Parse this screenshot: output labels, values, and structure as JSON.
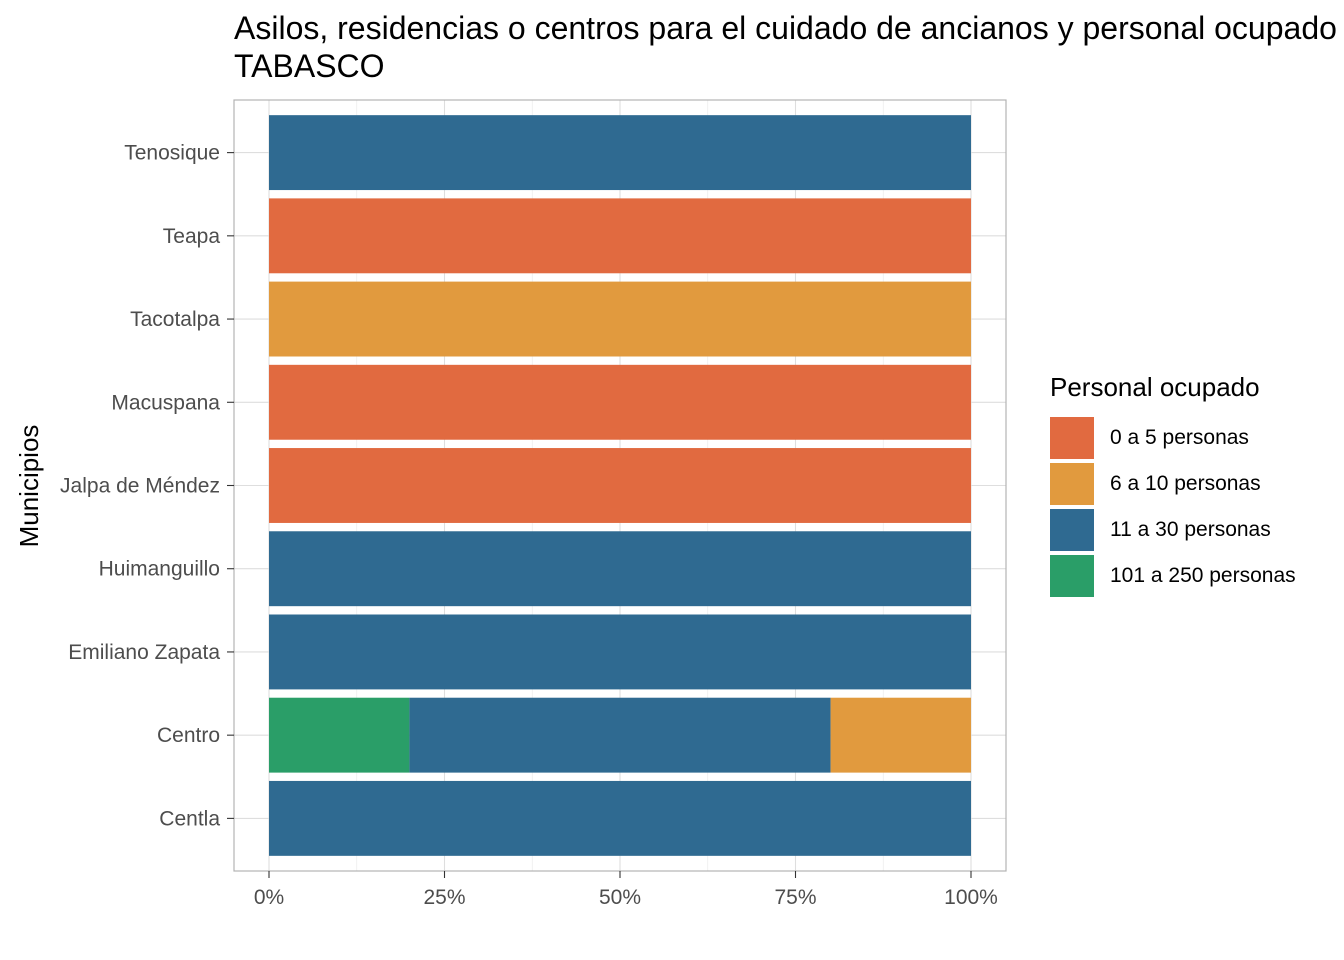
{
  "chart_data": {
    "type": "bar",
    "orientation": "horizontal",
    "stacked": "percent",
    "title": "Asilos, residencias o centros para el cuidado de ancianos y personal ocupado",
    "title_line2": "TABASCO",
    "xlabel": "",
    "ylabel": "Municipios",
    "xlim": [
      0,
      100
    ],
    "x_ticks": [
      "0%",
      "25%",
      "50%",
      "75%",
      "100%"
    ],
    "grid": true,
    "legend_title": "Personal ocupado",
    "legend_position": "right",
    "categories": [
      "Centla",
      "Centro",
      "Emiliano Zapata",
      "Huimanguillo",
      "Jalpa de Méndez",
      "Macuspana",
      "Tacotalpa",
      "Teapa",
      "Tenosique"
    ],
    "series": [
      {
        "name": "0 a 5 personas",
        "color": "#E16A40",
        "values": [
          0,
          0,
          0,
          0,
          100,
          100,
          0,
          100,
          0
        ]
      },
      {
        "name": "6 a 10 personas",
        "color": "#E19A3E",
        "values": [
          0,
          20,
          0,
          0,
          0,
          0,
          100,
          0,
          0
        ]
      },
      {
        "name": "11 a 30 personas",
        "color": "#2F6A91",
        "values": [
          100,
          60,
          100,
          100,
          0,
          0,
          0,
          0,
          100
        ]
      },
      {
        "name": "101 a 250 personas",
        "color": "#2A9E68",
        "values": [
          0,
          20,
          0,
          0,
          0,
          0,
          0,
          0,
          0
        ]
      }
    ],
    "stack_order_left_to_right": [
      "101 a 250 personas",
      "11 a 30 personas",
      "6 a 10 personas",
      "0 a 5 personas"
    ]
  }
}
